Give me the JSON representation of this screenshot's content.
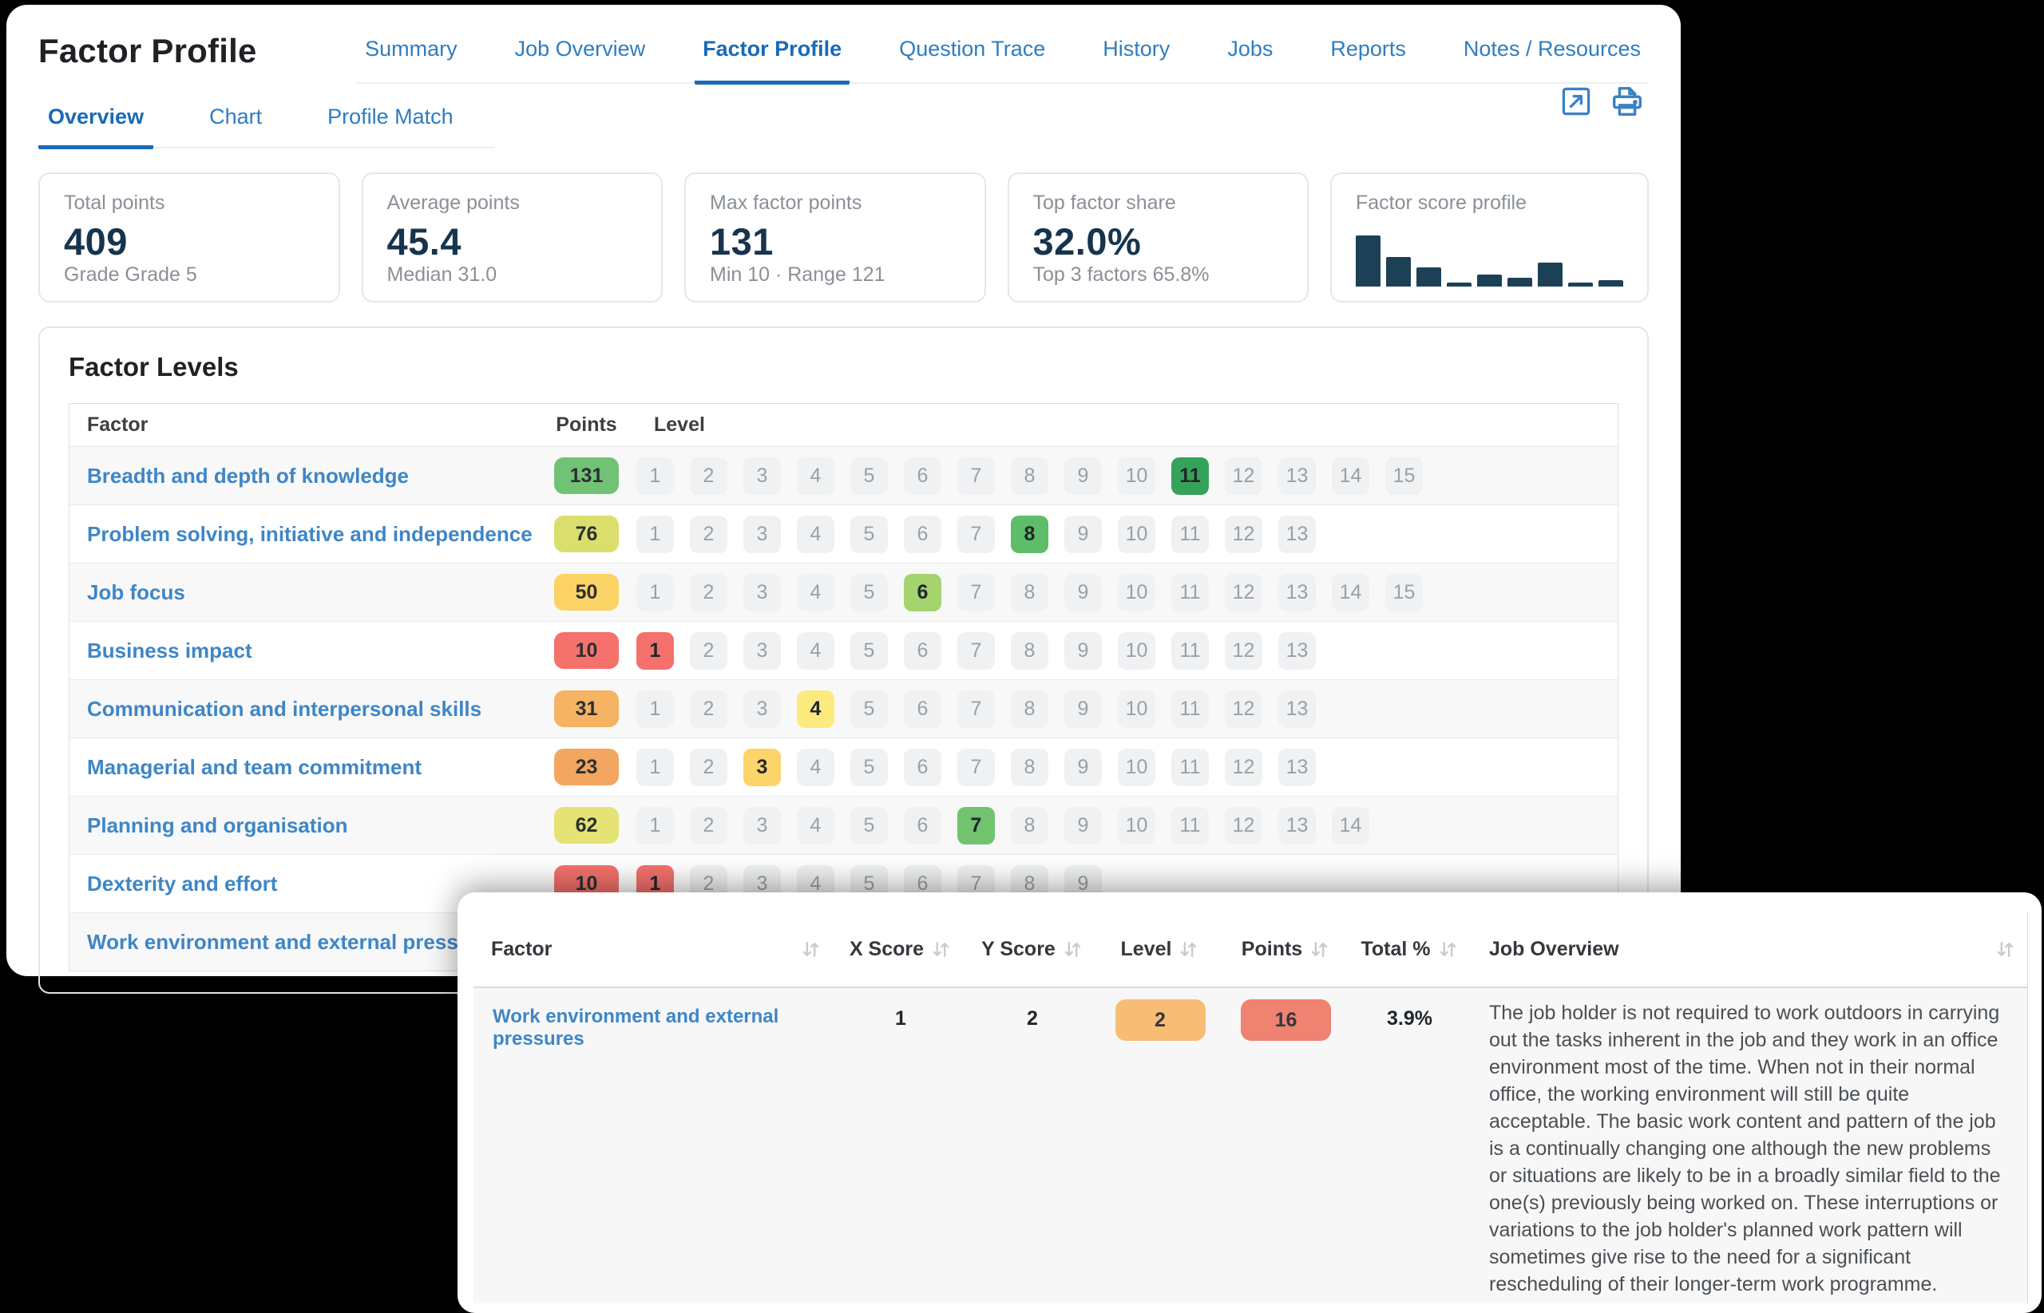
{
  "page_title": "Factor Profile",
  "nav_tabs": [
    {
      "label": "Summary",
      "active": false
    },
    {
      "label": "Job Overview",
      "active": false
    },
    {
      "label": "Factor Profile",
      "active": true
    },
    {
      "label": "Question Trace",
      "active": false
    },
    {
      "label": "History",
      "active": false
    },
    {
      "label": "Jobs",
      "active": false
    },
    {
      "label": "Reports",
      "active": false
    },
    {
      "label": "Notes / Resources",
      "active": false
    }
  ],
  "sub_tabs": [
    {
      "label": "Overview",
      "active": true
    },
    {
      "label": "Chart",
      "active": false
    },
    {
      "label": "Profile Match",
      "active": false
    }
  ],
  "toolbar": {
    "icons": [
      "export-icon",
      "print-icon"
    ],
    "icon_color": "#3b82c6"
  },
  "stat_cards": [
    {
      "label": "Total points",
      "value": "409",
      "sub": "Grade Grade 5"
    },
    {
      "label": "Average points",
      "value": "45.4",
      "sub": "Median 31.0"
    },
    {
      "label": "Max factor points",
      "value": "131",
      "sub": "Min 10 · Range 121"
    },
    {
      "label": "Top factor share",
      "value": "32.0%",
      "sub": "Top 3 factors 65.8%"
    },
    {
      "label": "Factor score profile",
      "value": "",
      "sub": "",
      "sparkline": true
    }
  ],
  "chart_data": {
    "type": "bar",
    "title": "Factor score profile",
    "categories": [
      "Breadth and depth of knowledge",
      "Problem solving, initiative and independence",
      "Job focus",
      "Business impact",
      "Communication and interpersonal skills",
      "Managerial and team commitment",
      "Planning and organisation",
      "Dexterity and effort",
      "Work environment and external pressures"
    ],
    "values": [
      131,
      76,
      50,
      10,
      31,
      23,
      62,
      10,
      16
    ],
    "bar_color": "#1c4157",
    "xlabel": "",
    "ylabel": "",
    "ylim": [
      0,
      131
    ],
    "grid": false,
    "legend": false
  },
  "factor_levels": {
    "title": "Factor Levels",
    "columns": [
      "Factor",
      "Points",
      "Level"
    ],
    "rows": [
      {
        "factor": "Breadth and depth of knowledge",
        "points": "131",
        "points_color": "#72c275",
        "levels": 15,
        "active_level": 11,
        "active_color": "#35a25a"
      },
      {
        "factor": "Problem solving, initiative and independence",
        "points": "76",
        "points_color": "#d9de6d",
        "levels": 13,
        "active_level": 8,
        "active_color": "#5dbd69"
      },
      {
        "factor": "Job focus",
        "points": "50",
        "points_color": "#fbd364",
        "levels": 15,
        "active_level": 6,
        "active_color": "#a5d36e"
      },
      {
        "factor": "Business impact",
        "points": "10",
        "points_color": "#f4716c",
        "levels": 13,
        "active_level": 1,
        "active_color": "#f4716c"
      },
      {
        "factor": "Communication and interpersonal skills",
        "points": "31",
        "points_color": "#f6b364",
        "levels": 13,
        "active_level": 4,
        "active_color": "#fcea7d"
      },
      {
        "factor": "Managerial and team commitment",
        "points": "23",
        "points_color": "#f3a660",
        "levels": 13,
        "active_level": 3,
        "active_color": "#fbd46c"
      },
      {
        "factor": "Planning and organisation",
        "points": "62",
        "points_color": "#e5e276",
        "levels": 14,
        "active_level": 7,
        "active_color": "#72c36e"
      },
      {
        "factor": "Dexterity and effort",
        "points": "10",
        "points_color": "#f4716c",
        "levels": 9,
        "active_level": 1,
        "active_color": "#f4716c"
      },
      {
        "factor": "Work environment and external pressures",
        "points": null,
        "levels": 0,
        "active_level": null
      }
    ]
  },
  "detail_panel": {
    "columns": [
      "Factor",
      "X Score",
      "Y Score",
      "Level",
      "Points",
      "Total %",
      "Job Overview"
    ],
    "row": {
      "factor": "Work environment and external pressures",
      "x_score": "1",
      "y_score": "2",
      "level": "2",
      "level_color": "#f8bd74",
      "points": "16",
      "points_color": "#ef8270",
      "total_pct": "3.9%",
      "job_overview": "The job holder is not required to work outdoors in carrying out the tasks inherent in the job and they work in an office environment most of the time. When not in their normal office, the working environment will still be quite acceptable. The basic work content and pattern of the job is a continually changing one although the new problems or situations are likely to be in a broadly similar field to the one(s) previously being worked on. These interruptions or variations to the job holder's planned work pattern will sometimes give rise to the need for a significant rescheduling of their longer-term work programme."
    }
  },
  "colors": {
    "accent_blue": "#1a6ab5",
    "link_blue": "#3e86c6",
    "chip_bg": "#f0f1f2",
    "sort_icon": "#c8cbce",
    "navy_value": "#17344e"
  }
}
